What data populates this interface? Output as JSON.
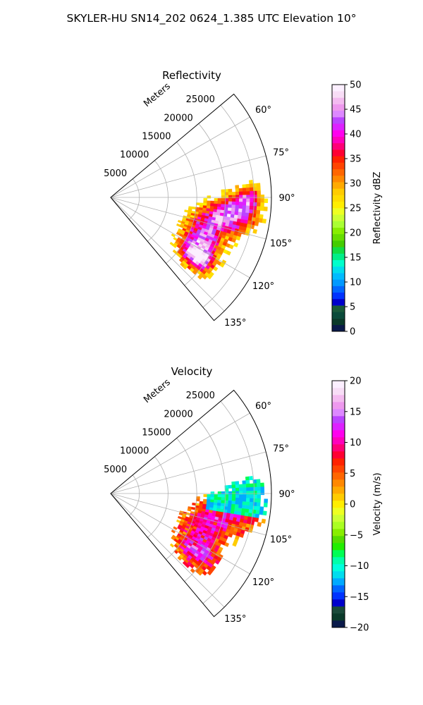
{
  "figure": {
    "title": "SKYLER-HU  SN14_202  0624_1.385 UTC Elevation 10°"
  },
  "chart_data": [
    {
      "type": "heatmap",
      "projection": "polar-sector",
      "title": "Reflectivity",
      "range_axis_label": "Meters",
      "range_ticks": [
        "5000",
        "10000",
        "15000",
        "20000",
        "25000"
      ],
      "range_max": 28000,
      "angle_ticks": [
        "60°",
        "75°",
        "90°",
        "105°",
        "120°",
        "135°"
      ],
      "angle_range_deg": [
        50,
        140
      ],
      "grid": true,
      "colorbar": {
        "label": "Reflectivity dBZ",
        "ticks": [
          "0",
          "5",
          "10",
          "15",
          "20",
          "25",
          "30",
          "35",
          "40",
          "45",
          "50"
        ],
        "range": [
          0,
          50
        ],
        "colors": [
          "#0a1a4a",
          "#0a3a2a",
          "#0a4a3a",
          "#1a5a3a",
          "#0000cc",
          "#0033ff",
          "#0066ff",
          "#0099ff",
          "#00bbff",
          "#00ddee",
          "#00ffcc",
          "#00ee88",
          "#11dd44",
          "#44cc00",
          "#66dd00",
          "#88ee00",
          "#aaff33",
          "#ccff33",
          "#eeff22",
          "#ffee00",
          "#ffdd00",
          "#ffcc00",
          "#ffaa00",
          "#ff8800",
          "#ff6600",
          "#ff4400",
          "#ff2200",
          "#ff0033",
          "#ff0077",
          "#ff00bb",
          "#ff00ee",
          "#dd22ff",
          "#bb44ff",
          "#dd88ff",
          "#ee99ee",
          "#f4bbf0",
          "#f8ddf6",
          "#fcefff"
        ]
      }
    },
    {
      "type": "heatmap",
      "projection": "polar-sector",
      "title": "Velocity",
      "range_axis_label": "Meters",
      "range_ticks": [
        "5000",
        "10000",
        "15000",
        "20000",
        "25000"
      ],
      "range_max": 28000,
      "angle_ticks": [
        "60°",
        "75°",
        "90°",
        "105°",
        "120°",
        "135°"
      ],
      "angle_range_deg": [
        50,
        140
      ],
      "grid": true,
      "colorbar": {
        "label": "Velocity (m/s)",
        "ticks": [
          "−20",
          "−15",
          "−10",
          "−5",
          "0",
          "5",
          "10",
          "15",
          "20"
        ],
        "range": [
          -20,
          20
        ],
        "colors": [
          "#0a1a4a",
          "#0a3a2a",
          "#1a4a3a",
          "#0000cc",
          "#0033ff",
          "#0066ff",
          "#00aaff",
          "#00ddee",
          "#00ffdd",
          "#00ffaa",
          "#00ff55",
          "#22ee00",
          "#55dd00",
          "#88ee00",
          "#aaff22",
          "#ccff33",
          "#eeff22",
          "#ffee00",
          "#ffcc00",
          "#ffaa00",
          "#ff8800",
          "#ff6600",
          "#ff4400",
          "#ff2200",
          "#ff0033",
          "#ff0077",
          "#ff00bb",
          "#ff00ee",
          "#dd22ff",
          "#bb44ff",
          "#dd88ff",
          "#ee99ee",
          "#f4bbf0",
          "#f8ddf6",
          "#fcefff"
        ]
      }
    }
  ]
}
